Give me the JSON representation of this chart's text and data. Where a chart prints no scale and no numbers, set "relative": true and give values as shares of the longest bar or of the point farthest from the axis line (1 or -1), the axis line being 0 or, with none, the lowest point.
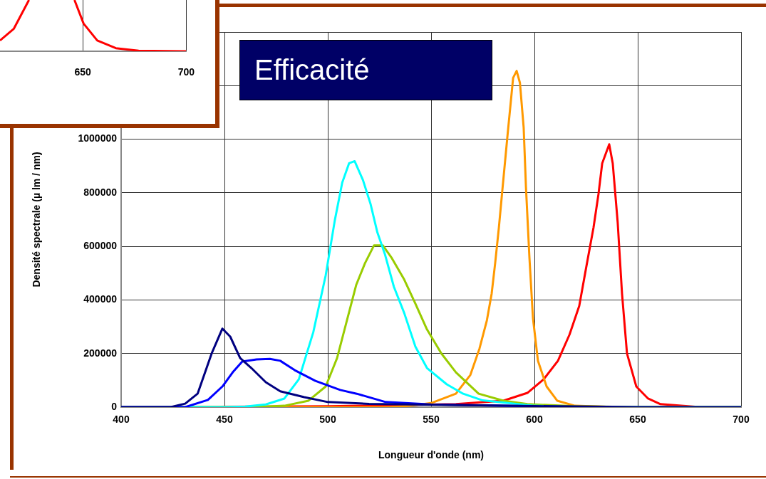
{
  "chart_data": [
    {
      "type": "line",
      "relative": true,
      "xlim": [
        610,
        700
      ],
      "xticks": [
        650,
        700
      ],
      "grid": "x",
      "marker": "none",
      "series": [
        {
          "color": "#ff0000",
          "x": [
            610,
            616.7,
            624,
            635,
            646,
            650.4,
            657,
            666,
            677,
            700
          ],
          "values": [
            0.21,
            0.44,
            1,
            null,
            1,
            0.54,
            0.21,
            0.06,
            0.01,
            0
          ]
        }
      ]
    },
    {
      "type": "line",
      "title": "Efficacité",
      "xlabel": "Longueur d'onde (nm)",
      "ylabel": "Densité spectrale (µ lm / nm)",
      "xlim": [
        400,
        700
      ],
      "xticks": [
        400,
        450,
        500,
        550,
        600,
        650,
        700
      ],
      "ylim": [
        0,
        1400000
      ],
      "yticks": [
        0,
        200000,
        400000,
        600000,
        800000,
        1000000,
        {
          "value": 1200000,
          "label": null
        },
        {
          "value": 1400000,
          "label": null
        }
      ],
      "grid": true,
      "legend": false,
      "marker": "none",
      "series": [
        {
          "color": "#000080",
          "x": [
            400,
            420,
            424,
            431,
            437,
            443.8,
            449,
            452.8,
            457.6,
            463,
            470,
            477,
            488.6,
            500,
            520,
            560,
            600,
            650,
            700
          ],
          "values": [
            0,
            0,
            0,
            13000,
            50000,
            200000,
            293000,
            263000,
            183000,
            146000,
            93000,
            59000,
            37000,
            19000,
            12000,
            8000,
            4000,
            0,
            0
          ]
        },
        {
          "color": "#0000ff",
          "x": [
            400,
            425,
            431,
            442,
            449,
            454,
            458.6,
            465.5,
            472,
            477,
            484,
            494,
            506,
            514,
            528,
            550,
            600
          ],
          "values": [
            0,
            0,
            0,
            27000,
            77000,
            130000,
            170000,
            178000,
            180000,
            173000,
            138000,
            98000,
            64000,
            50000,
            19000,
            10000,
            3000
          ]
        },
        {
          "color": "#00ffff",
          "x": [
            400,
            450,
            460,
            470,
            479,
            486,
            493,
            499,
            503.4,
            507,
            510.3,
            513,
            517,
            520.7,
            524,
            527.6,
            532,
            537,
            542.4,
            548,
            557.6,
            565.5,
            575,
            600,
            620,
            700
          ],
          "values": [
            0,
            0,
            2000,
            10000,
            32000,
            104000,
            280000,
            492000,
            697000,
            838000,
            910000,
            918000,
            848000,
            758000,
            652000,
            572000,
            449000,
            351000,
            226000,
            146000,
            85000,
            50000,
            25000,
            5000,
            0,
            0
          ]
        },
        {
          "color": "#99cc00",
          "x": [
            400,
            460,
            470,
            479,
            490.7,
            499,
            504.5,
            509,
            513.8,
            518,
            522.4,
            526.6,
            531,
            537,
            542.4,
            548,
            555,
            562,
            573,
            585,
            596.6,
            620,
            650,
            700
          ],
          "values": [
            0,
            0,
            2000,
            5000,
            24000,
            77000,
            183000,
            316000,
            457000,
            537000,
            604000,
            604000,
            556000,
            476000,
            386000,
            290000,
            200000,
            130000,
            50000,
            24000,
            11000,
            3000,
            0,
            0
          ]
        },
        {
          "color": "#ff9900",
          "x": [
            400,
            530,
            540,
            550,
            562,
            569,
            573.4,
            577,
            579.3,
            581,
            582.8,
            584.5,
            587,
            589.7,
            591.4,
            593,
            594.8,
            595.9,
            597.6,
            599.3,
            601.7,
            605.9,
            611,
            619.6,
            640,
            700
          ],
          "values": [
            0,
            0,
            5000,
            15000,
            50000,
            120000,
            218000,
            324000,
            423000,
            537000,
            670000,
            811000,
            1016000,
            1229000,
            1255000,
            1210000,
            1043000,
            822000,
            556000,
            332000,
            173000,
            77000,
            24000,
            5000,
            0,
            0
          ]
        },
        {
          "color": "#ff0000",
          "x": [
            400,
            500,
            562,
            585,
            596.6,
            604.5,
            611.4,
            617,
            621.7,
            625,
            628.6,
            631,
            632.8,
            636.2,
            637.9,
            640.3,
            642.4,
            644.8,
            649.3,
            655,
            661,
            680,
            700
          ],
          "values": [
            0,
            3000,
            11000,
            24000,
            53000,
            104000,
            173000,
            271000,
            378000,
            519000,
            670000,
            795000,
            910000,
            981000,
            910000,
            689000,
            423000,
            200000,
            77000,
            32000,
            11000,
            0,
            0
          ]
        }
      ]
    }
  ]
}
